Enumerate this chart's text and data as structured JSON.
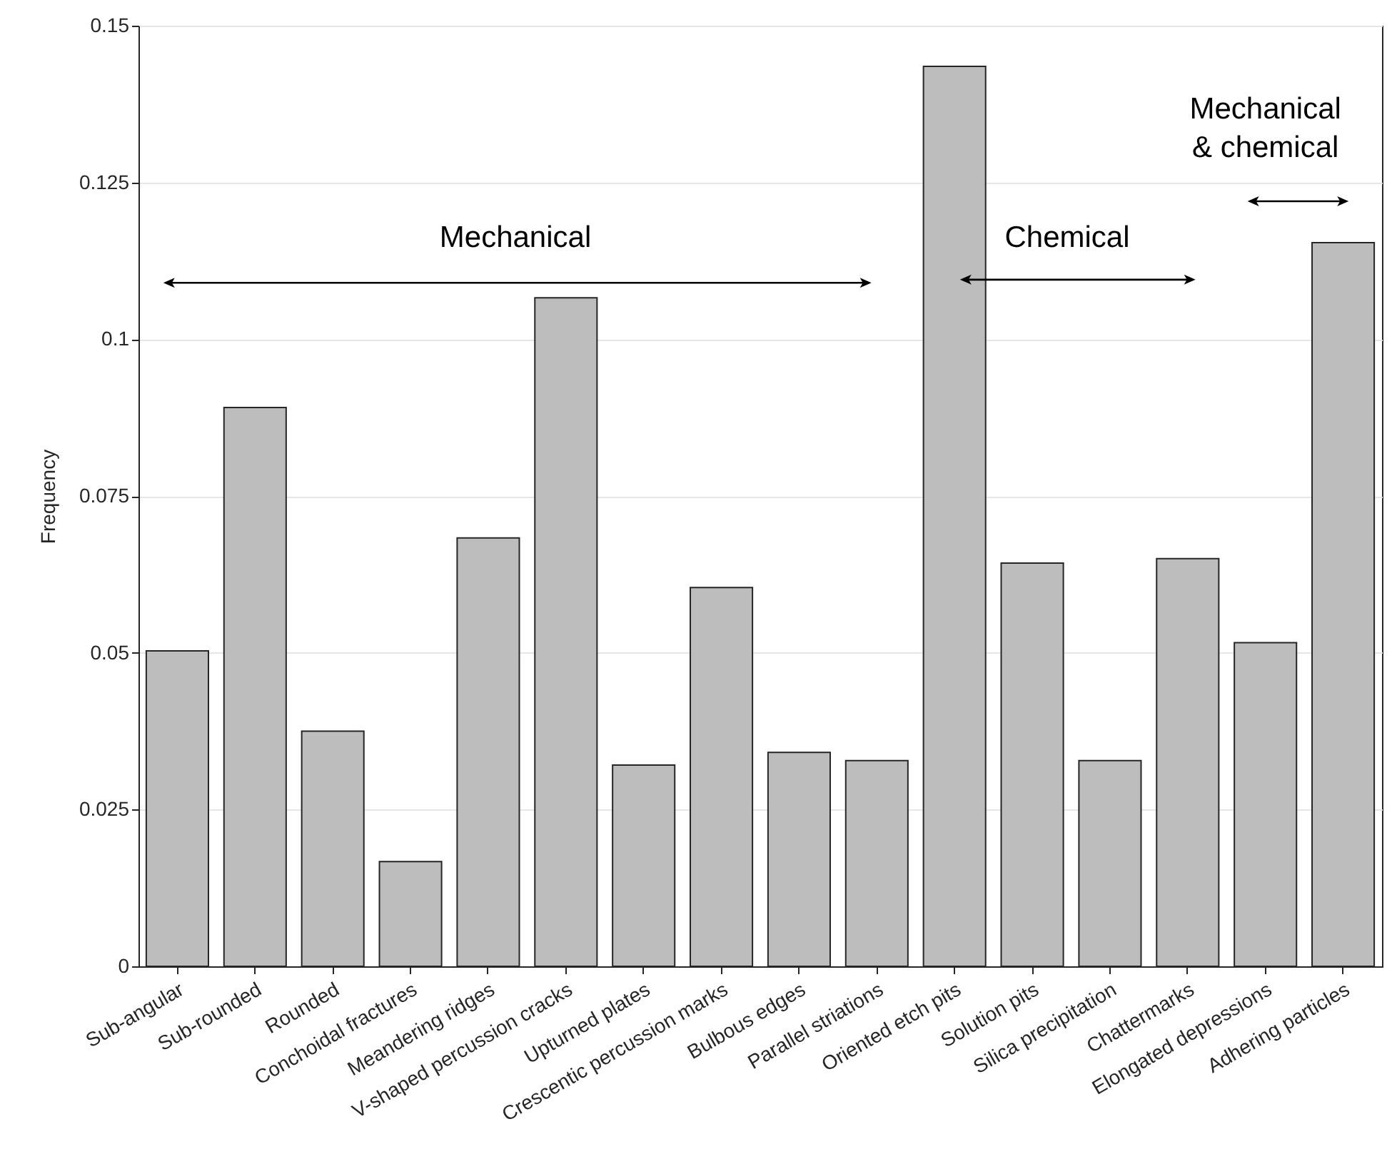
{
  "chart_data": {
    "type": "bar",
    "ylabel": "Frequency",
    "categories": [
      "Sub-angular",
      "Sub-rounded",
      "Rounded",
      "Conchoidal fractures",
      "Meandering ridges",
      "V-shaped percussion cracks",
      "Upturned plates",
      "Crescentic percussion marks",
      "Bulbous edges",
      "Parallel striations",
      "Oriented etch pits",
      "Solution pits",
      "Silica precipitation",
      "Chattermarks",
      "Elongated depressions",
      "Adhering particles"
    ],
    "values": [
      0.0503,
      0.0891,
      0.0375,
      0.0167,
      0.0683,
      0.1066,
      0.0321,
      0.0604,
      0.0341,
      0.0328,
      0.1435,
      0.0643,
      0.0328,
      0.065,
      0.0516,
      0.1154
    ],
    "color": "#bdbdbd",
    "ylim": [
      0,
      0.15
    ],
    "yticks": [
      0,
      0.025,
      0.05,
      0.075,
      0.1,
      0.125,
      0.15
    ],
    "grid": "y",
    "annotations": [
      "Mechanical",
      "Chemical",
      "Mechanical & chemical"
    ]
  }
}
